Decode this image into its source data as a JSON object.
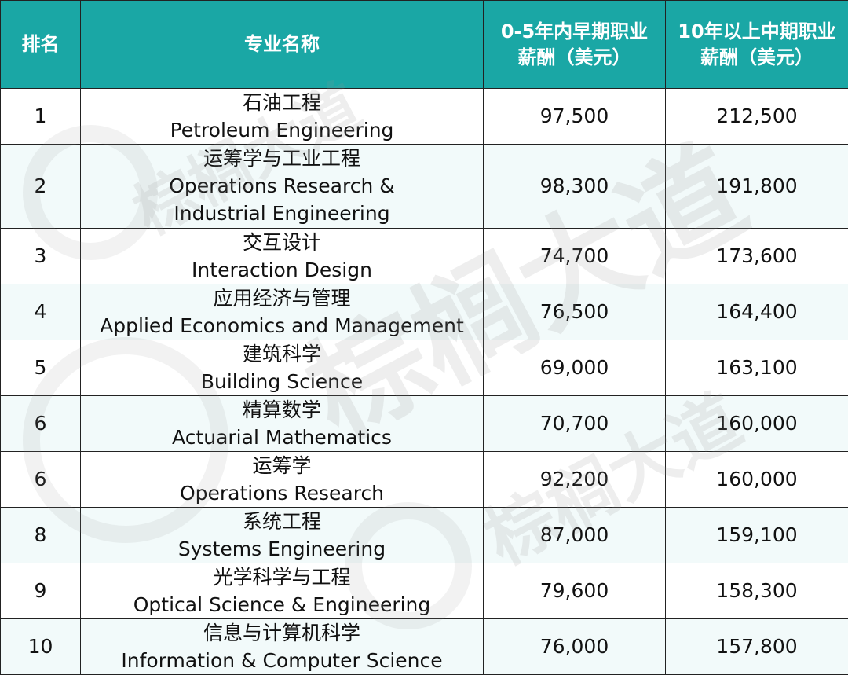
{
  "table": {
    "headers": {
      "rank": "排名",
      "major": "专业名称",
      "early": [
        "0-5年内早期职业",
        "薪酬（美元）"
      ],
      "mid": [
        "10年以上中期职业",
        "薪酬（美元）"
      ]
    },
    "rows": [
      {
        "rank": "1",
        "zh": "石油工程",
        "en": [
          "Petroleum Engineering"
        ],
        "early": "97,500",
        "mid": "212,500"
      },
      {
        "rank": "2",
        "zh": "运筹学与工业工程",
        "en": [
          "Operations Research &",
          "Industrial Engineering"
        ],
        "early": "98,300",
        "mid": "191,800"
      },
      {
        "rank": "3",
        "zh": "交互设计",
        "en": [
          "Interaction Design"
        ],
        "early": "74,700",
        "mid": "173,600"
      },
      {
        "rank": "4",
        "zh": "应用经济与管理",
        "en": [
          "Applied Economics and Management"
        ],
        "early": "76,500",
        "mid": "164,400"
      },
      {
        "rank": "5",
        "zh": "建筑科学",
        "en": [
          "Building Science"
        ],
        "early": "69,000",
        "mid": "163,100"
      },
      {
        "rank": "6",
        "zh": "精算数学",
        "en": [
          "Actuarial Mathematics"
        ],
        "early": "70,700",
        "mid": "160,000"
      },
      {
        "rank": "6",
        "zh": "运筹学",
        "en": [
          "Operations Research"
        ],
        "early": "92,200",
        "mid": "160,000"
      },
      {
        "rank": "8",
        "zh": "系统工程",
        "en": [
          "Systems Engineering"
        ],
        "early": "87,000",
        "mid": "159,100"
      },
      {
        "rank": "9",
        "zh": "光学科学与工程",
        "en": [
          "Optical Science & Engineering"
        ],
        "early": "79,600",
        "mid": "158,300"
      },
      {
        "rank": "10",
        "zh": "信息与计算机科学",
        "en": [
          "Information & Computer Science"
        ],
        "early": "76,000",
        "mid": "157,800"
      }
    ]
  },
  "watermark": {
    "text_1": "棕榈大道",
    "text_2": "棕榈大道"
  }
}
